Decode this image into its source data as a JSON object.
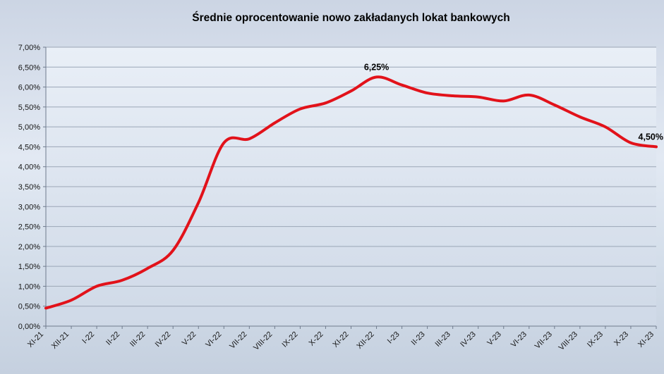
{
  "title": "Średnie oprocentowanie nowo zakładanych lokat bankowych",
  "chart_data": {
    "type": "line",
    "title": "Średnie oprocentowanie nowo zakładanych lokat bankowych",
    "xlabel": "",
    "ylabel": "",
    "x": [
      "XI-21",
      "XII-21",
      "I-22",
      "II-22",
      "III-22",
      "IV-22",
      "V-22",
      "VI-22",
      "VII-22",
      "VIII-22",
      "IX-22",
      "X-22",
      "XI-22",
      "XII-22",
      "I-23",
      "II-23",
      "III-23",
      "IV-23",
      "V-23",
      "VI-23",
      "VII-23",
      "VIII-23",
      "IX-23",
      "X-23",
      "XI-23"
    ],
    "series": [
      {
        "name": "Średnie oprocentowanie nowo zakładanych lokat bankowych",
        "values": [
          0.45,
          0.65,
          1.0,
          1.15,
          1.45,
          1.9,
          3.1,
          4.6,
          4.7,
          5.1,
          5.45,
          5.6,
          5.9,
          6.25,
          6.05,
          5.85,
          5.78,
          5.75,
          5.65,
          5.8,
          5.55,
          5.25,
          5.0,
          4.6,
          4.5
        ]
      }
    ],
    "ylim": [
      0,
      7
    ],
    "ytick_step": 0.5,
    "ytick_labels": [
      "0,00%",
      "0,50%",
      "1,00%",
      "1,50%",
      "2,00%",
      "2,50%",
      "3,00%",
      "3,50%",
      "4,00%",
      "4,50%",
      "5,00%",
      "5,50%",
      "6,00%",
      "6,50%",
      "7,00%"
    ],
    "grid": true,
    "legend": "none",
    "line_color": "#e2121a",
    "annotations": [
      {
        "x_index": 13,
        "label": "6,25%"
      },
      {
        "x_index": 24,
        "label": "4,50%"
      }
    ]
  }
}
